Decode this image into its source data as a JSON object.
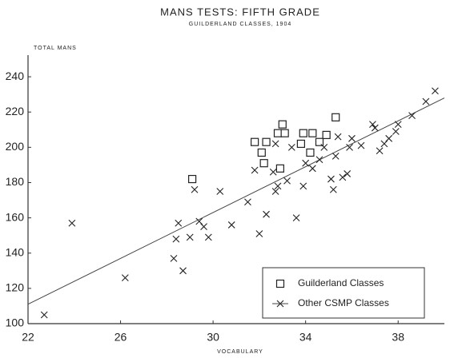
{
  "chart_data": {
    "type": "scatter",
    "title": "MANS TESTS: FIFTH GRADE",
    "subtitle": "GUILDERLAND CLASSES, 1904",
    "y_label": "TOTAL MANS",
    "x_label": "VOCABULARY",
    "xlim": [
      22,
      40
    ],
    "ylim": [
      100,
      250
    ],
    "xticks": [
      22,
      26,
      30,
      34,
      38
    ],
    "yticks": [
      100,
      120,
      140,
      160,
      180,
      200,
      220,
      240
    ],
    "grid": false,
    "legend": "lower right",
    "series": [
      {
        "name": "Guilderland Classes",
        "marker": "square",
        "color": "#222222",
        "x": [
          29.1,
          31.8,
          32.1,
          32.2,
          32.3,
          32.8,
          32.9,
          33.0,
          33.1,
          33.8,
          33.9,
          34.2,
          34.3,
          34.6,
          34.9,
          35.3
        ],
        "values": [
          182,
          203,
          197,
          191,
          203,
          208,
          188,
          213,
          208,
          202,
          208,
          197,
          208,
          203,
          207,
          217
        ]
      },
      {
        "name": "Other CSMP Classes",
        "marker": "x",
        "color": "#222222",
        "x": [
          22.7,
          23.9,
          26.2,
          28.5,
          28.4,
          28.3,
          28.7,
          29.0,
          29.2,
          29.4,
          29.6,
          29.8,
          30.3,
          30.8,
          31.5,
          31.8,
          32.0,
          32.3,
          32.6,
          32.7,
          32.8,
          32.7,
          33.2,
          33.4,
          33.6,
          33.9,
          34.0,
          34.3,
          34.6,
          34.8,
          35.1,
          35.2,
          35.3,
          35.4,
          35.6,
          35.8,
          35.9,
          36.0,
          36.4,
          36.9,
          37.0,
          37.2,
          37.4,
          37.6,
          37.9,
          38.0,
          38.6,
          39.2,
          39.6
        ],
        "values": [
          105,
          157,
          126,
          157,
          148,
          137,
          130,
          149,
          176,
          158,
          155,
          149,
          175,
          156,
          169,
          187,
          151,
          162,
          186,
          175,
          178,
          202,
          181,
          200,
          160,
          178,
          191,
          188,
          193,
          200,
          182,
          176,
          195,
          206,
          183,
          185,
          200,
          205,
          201,
          213,
          211,
          198,
          202,
          205,
          209,
          213,
          218,
          226,
          232
        ]
      }
    ],
    "trend_line": {
      "x": [
        22,
        40
      ],
      "values": [
        111,
        228
      ]
    }
  }
}
